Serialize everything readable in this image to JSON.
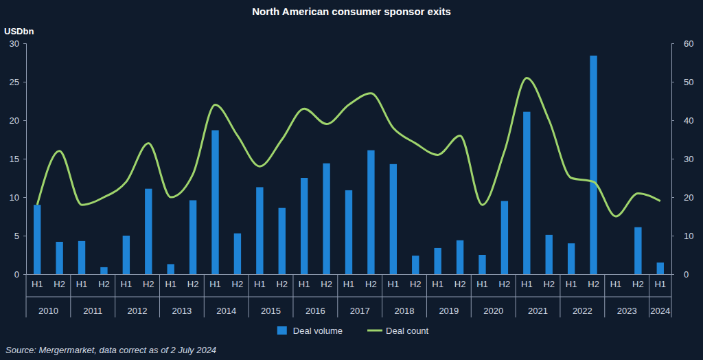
{
  "chart_data": {
    "type": "bar",
    "title": "North American consumer sponsor exits",
    "y_label": "USDbn",
    "source": "Source: Mergermarket, data correct as of 2 July 2024",
    "categories": [
      "H1",
      "H2",
      "H1",
      "H2",
      "H1",
      "H2",
      "H1",
      "H2",
      "H1",
      "H2",
      "H1",
      "H2",
      "H1",
      "H2",
      "H1",
      "H2",
      "H1",
      "H2",
      "H1",
      "H2",
      "H1",
      "H2",
      "H1",
      "H2",
      "H1",
      "H2",
      "H1",
      "H2",
      "H1"
    ],
    "category_groups": [
      "2010",
      "2010",
      "2011",
      "2011",
      "2012",
      "2012",
      "2013",
      "2013",
      "2014",
      "2014",
      "2015",
      "2015",
      "2016",
      "2016",
      "2017",
      "2017",
      "2018",
      "2018",
      "2019",
      "2019",
      "2020",
      "2020",
      "2021",
      "2021",
      "2022",
      "2022",
      "2023",
      "2023",
      "2024"
    ],
    "series": [
      {
        "name": "Deal volume",
        "type": "bar",
        "color": "#1f84d6",
        "values": [
          9.0,
          4.2,
          4.3,
          0.9,
          5.0,
          11.1,
          1.3,
          9.6,
          18.7,
          5.3,
          11.3,
          8.6,
          12.5,
          14.4,
          10.9,
          16.1,
          14.3,
          2.4,
          3.4,
          4.4,
          2.5,
          9.5,
          21.1,
          5.1,
          4.0,
          28.4,
          0,
          6.1,
          1.5
        ]
      },
      {
        "name": "Deal count",
        "type": "line",
        "axis": "y2",
        "color": "#9fd46c",
        "values": [
          18,
          32,
          18,
          20,
          24,
          34,
          20,
          26,
          44,
          36,
          28,
          35,
          43,
          39,
          44,
          47,
          38,
          34,
          31,
          36,
          18,
          32,
          51,
          40,
          25,
          24,
          15,
          21,
          19
        ]
      }
    ],
    "ylim": [
      0,
      30
    ],
    "yticks": [
      0,
      5,
      10,
      15,
      20,
      25,
      30
    ],
    "y2lim": [
      0,
      60
    ],
    "y2ticks": [
      0,
      10,
      20,
      30,
      40,
      50,
      60
    ],
    "grid": false,
    "legend": "bottom"
  }
}
